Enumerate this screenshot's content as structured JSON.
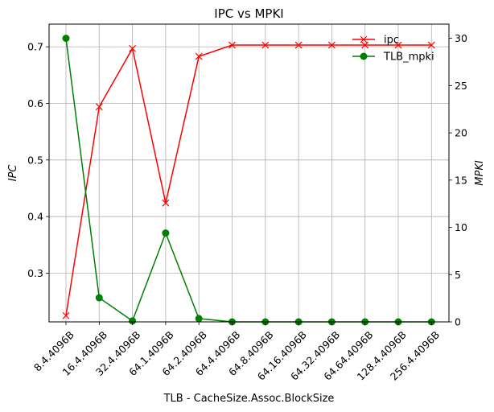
{
  "chart_data": {
    "type": "line",
    "title": "IPC vs MPKI",
    "xlabel": "TLB - CacheSize.Assoc.BlockSize",
    "ylabel_left": "IPC",
    "ylabel_right": "MPKI",
    "categories": [
      "8.4.4096B",
      "16.4.4096B",
      "32.4.4096B",
      "64.1.4096B",
      "64.2.4096B",
      "64.4.4096B",
      "64.8.4096B",
      "64.16.4096B",
      "64.32.4096B",
      "64.64.4096B",
      "128.4.4096B",
      "256.4.4096B"
    ],
    "y_left_ticks": [
      "0.3",
      "0.4",
      "0.5",
      "0.6",
      "0.7"
    ],
    "y_left_range": [
      0.214,
      0.74
    ],
    "y_right_ticks": [
      "0",
      "5",
      "10",
      "15",
      "20",
      "25",
      "30"
    ],
    "y_right_range": [
      0,
      31.5
    ],
    "grid": true,
    "legend_position": "top-right",
    "series": [
      {
        "name": "ipc",
        "axis": "left",
        "color": "#ff0000",
        "marker": "x",
        "values": [
          0.225,
          0.594,
          0.697,
          0.424,
          0.683,
          0.703,
          0.703,
          0.703,
          0.703,
          0.703,
          0.703,
          0.703
        ]
      },
      {
        "name": "TLB_mpki",
        "axis": "right",
        "color": "#008000",
        "marker": "circle",
        "values": [
          30.0,
          2.55,
          0.1,
          9.4,
          0.35,
          0.0,
          0.0,
          0.0,
          0.0,
          0.0,
          0.0,
          0.0
        ]
      }
    ]
  }
}
